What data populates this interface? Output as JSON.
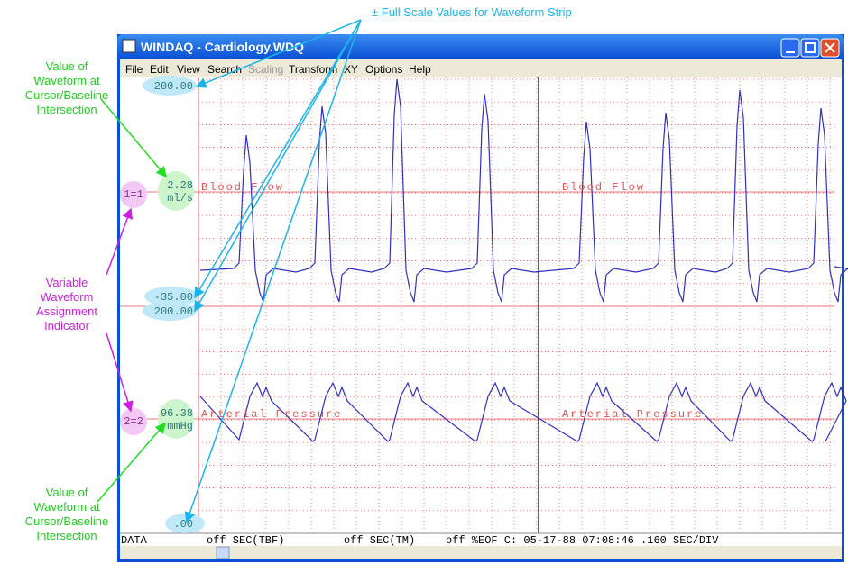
{
  "window": {
    "title": "WINDAQ - Cardiology.WDQ",
    "menu": [
      "File",
      "Edit",
      "View",
      "Search",
      "Scaling",
      "Transform",
      "XY",
      "Options",
      "Help"
    ]
  },
  "channels": [
    {
      "full_scale_top": "200.00",
      "full_scale_bottom": "-35.00",
      "cursor_value": "2.28",
      "unit": "ml/s",
      "indicator": "1=1",
      "label": "Blood Flow"
    },
    {
      "full_scale_top": "200.00",
      "full_scale_bottom": ".00",
      "cursor_value": "96.38",
      "unit": "mmHg",
      "indicator": "2=2",
      "label": "Arterial Pressure"
    }
  ],
  "status": {
    "mode": "DATA",
    "tbf": "off SEC(TBF)",
    "tm": "off SEC(TM)",
    "info": "off %EOF C: 05-17-88 07:08:46 .160 SEC/DIV"
  },
  "annotations": {
    "full_scale": "± Full Scale Values for Waveform Strip",
    "cursor_value_top": [
      "Value of",
      "Waveform at",
      "Cursor/Baseline",
      "Intersection"
    ],
    "assignment": [
      "Variable",
      "Waveform",
      "Assignment",
      "Indicator"
    ],
    "cursor_value_bottom": [
      "Value of",
      "Waveform at",
      "Cursor/Baseline",
      "Intersection"
    ]
  }
}
